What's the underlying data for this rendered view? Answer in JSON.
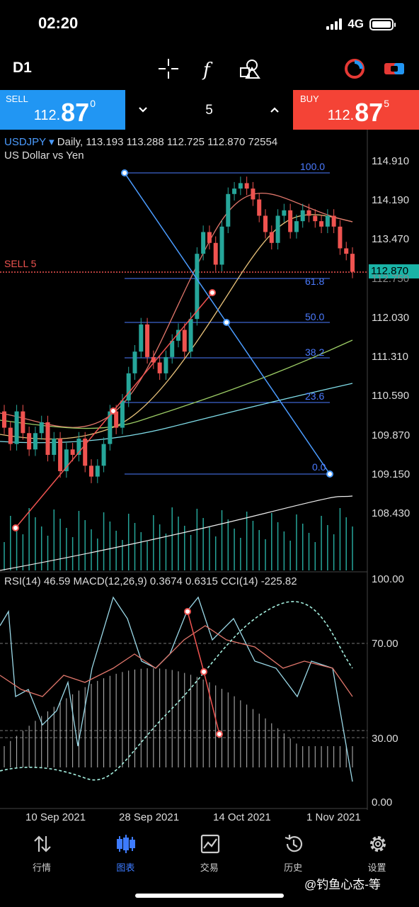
{
  "status": {
    "time": "02:20",
    "network": "4G"
  },
  "toolbar": {
    "timeframe": "D1",
    "tools": [
      "crosshair-icon",
      "function-icon",
      "shapes-icon"
    ],
    "right_tools": [
      "trade-mode-icon",
      "chart-toggle-icon"
    ]
  },
  "trade": {
    "sell_label": "SELL",
    "sell_small": "112.",
    "sell_big": "87",
    "sell_sup": "0",
    "buy_label": "BUY",
    "buy_small": "112.",
    "buy_big": "87",
    "buy_sup": "5",
    "lot": "5"
  },
  "chart": {
    "symbol": "USDJPY",
    "ohlc_text": "Daily, 113.193 113.288 112.725 112.870 72554",
    "description": "US Dollar vs Yen",
    "sell_level_label": "SELL 5",
    "current_price": "112.870",
    "price_axis": [
      "114.910",
      "114.190",
      "113.470",
      "112.750",
      "112.030",
      "111.310",
      "110.590",
      "109.870",
      "109.150",
      "108.430"
    ],
    "fib_levels": [
      "100.0",
      "61.8",
      "50.0",
      "38.2",
      "23.6",
      "0.0"
    ],
    "indicator_text": "RSI(14) 46.59 MACD(12,26,9) 0.3674 0.6315 CCI(14) -225.82",
    "indicator_axis": [
      "100.00",
      "70.00",
      "30.00",
      "0.00"
    ],
    "dates": [
      "10 Sep 2021",
      "28 Sep 2021",
      "14 Oct 2021",
      "1 Nov 2021"
    ],
    "colors": {
      "up": "#26a69a",
      "down": "#ef5350",
      "fib": "#4b7bff",
      "sell": "#2196f3",
      "buy": "#f44336"
    }
  },
  "nav": {
    "items": [
      {
        "label": "行情",
        "icon": "quotes-icon"
      },
      {
        "label": "图表",
        "icon": "chart-icon"
      },
      {
        "label": "交易",
        "icon": "trade-icon"
      },
      {
        "label": "历史",
        "icon": "history-icon"
      },
      {
        "label": "设置",
        "icon": "settings-icon"
      }
    ]
  },
  "watermark": "@钓鱼心态-等"
}
